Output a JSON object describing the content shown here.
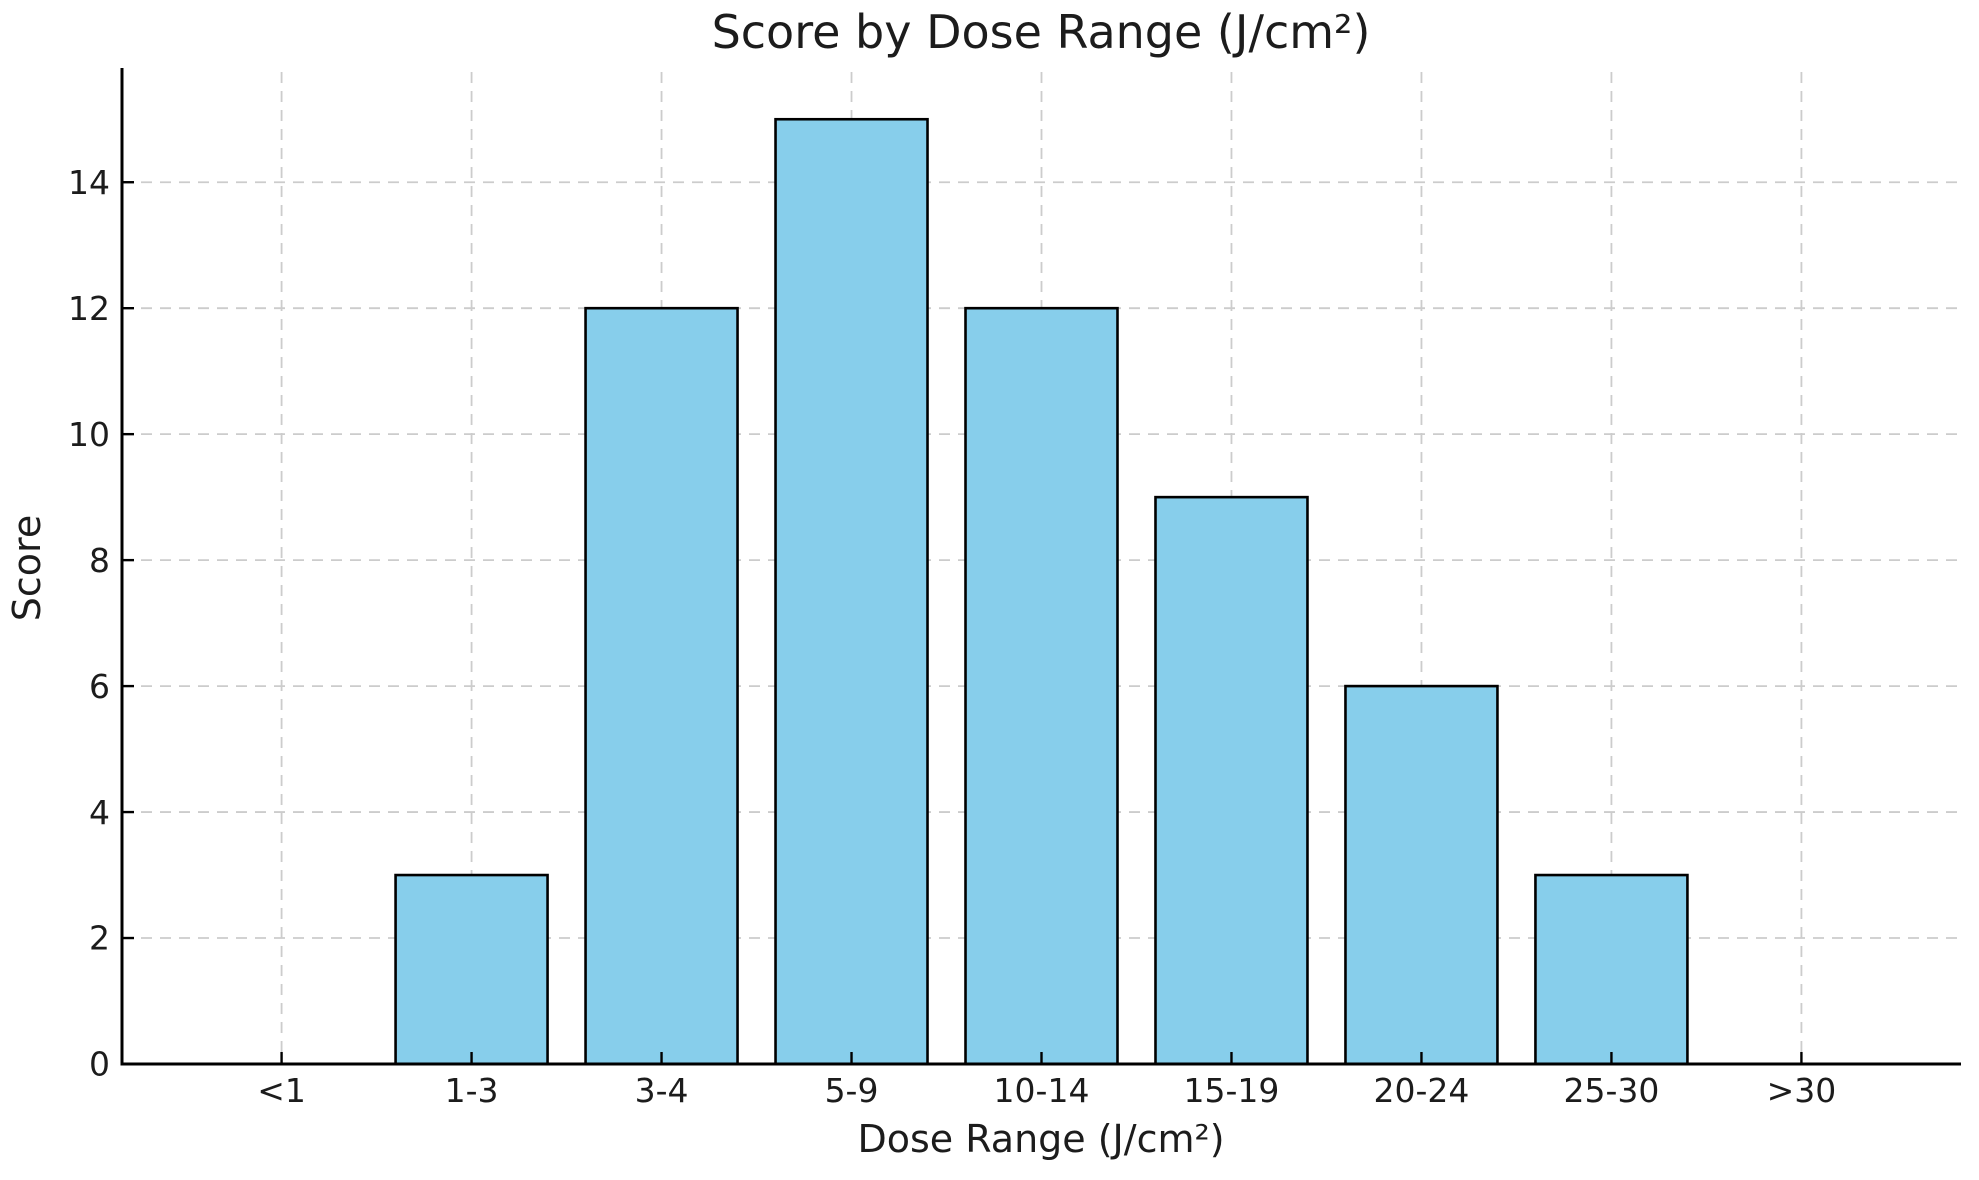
{
  "chart_data": {
    "type": "bar",
    "title": "Score by Dose Range (J/cm²)",
    "xlabel": "Dose Range (J/cm²)",
    "ylabel": "Score",
    "categories": [
      "<1",
      "1-3",
      "3-4",
      "5-9",
      "10-14",
      "15-19",
      "20-24",
      "25-30",
      ">30"
    ],
    "values": [
      0,
      3,
      12,
      15,
      12,
      9,
      6,
      3,
      0
    ],
    "ylim": [
      0,
      15.75
    ],
    "yticks": [
      0,
      2,
      4,
      6,
      8,
      10,
      12,
      14
    ],
    "grid": true,
    "legend": "none",
    "bar_color": "#87CEEB",
    "bar_edge_color": "#000000",
    "grid_color": "#cccccc",
    "spine_color": "#000000",
    "text_color": "#1c1c1c",
    "background_color": "#ffffff"
  }
}
